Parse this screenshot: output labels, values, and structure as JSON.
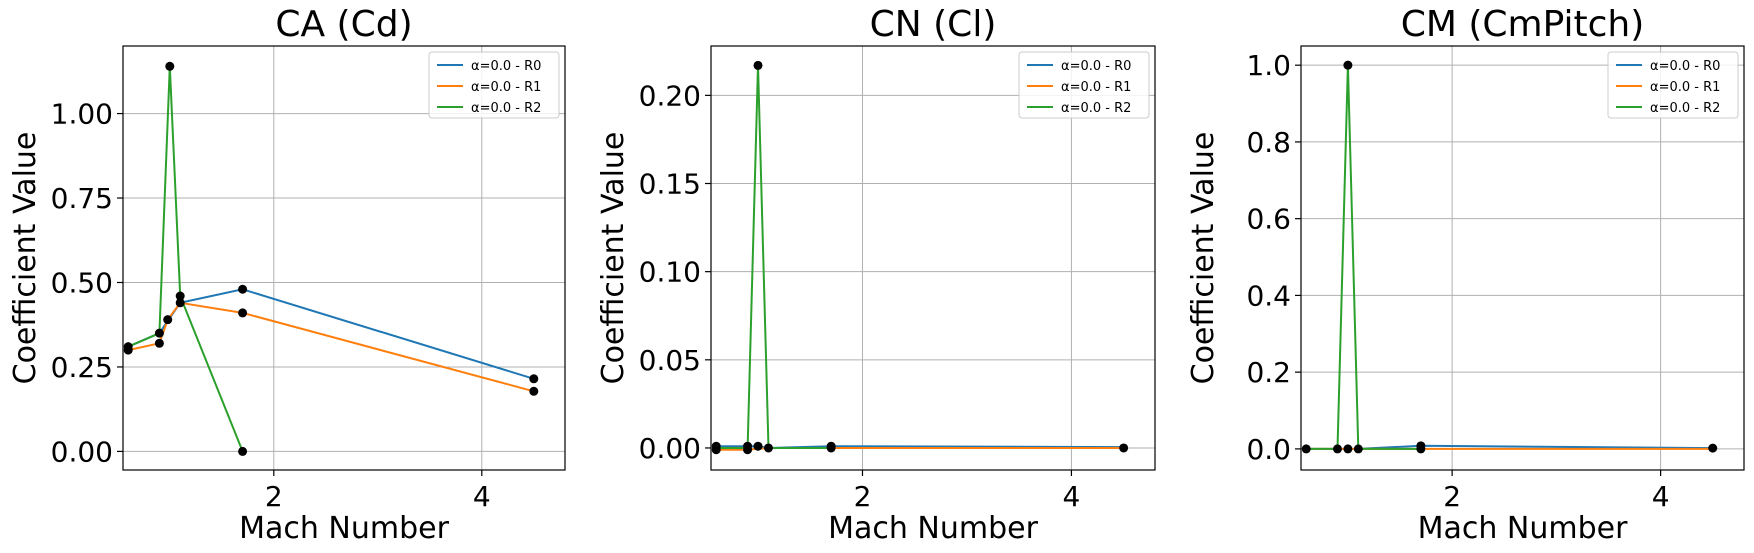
{
  "chart_data": [
    {
      "type": "line",
      "title": "CA (Cd)",
      "xlabel": "Mach Number",
      "ylabel": "Coefficient Value",
      "xlim": [
        0.55,
        4.8
      ],
      "ylim": [
        -0.055,
        1.2
      ],
      "xticks": [
        2,
        4
      ],
      "xtick_labels": [
        "2",
        "4"
      ],
      "yticks": [
        0,
        0.25,
        0.5,
        0.75,
        1.0
      ],
      "ytick_labels": [
        "0.00",
        "0.25",
        "0.50",
        "0.75",
        "1.00"
      ],
      "grid": true,
      "legend_position": "top-right",
      "series": [
        {
          "name": "α=0.0 - R0",
          "color": "#1f77b4",
          "x": [
            0.6,
            0.9,
            1.1,
            1.7,
            4.5
          ],
          "y": [
            0.31,
            0.35,
            0.44,
            0.48,
            0.215
          ]
        },
        {
          "name": "α=0.0 - R1",
          "color": "#ff7f0e",
          "x": [
            0.6,
            0.9,
            0.98,
            1.1,
            1.7,
            4.5
          ],
          "y": [
            0.3,
            0.32,
            0.39,
            0.44,
            0.41,
            0.178
          ]
        },
        {
          "name": "α=0.0 - R2",
          "color": "#2ca02c",
          "x": [
            0.6,
            0.9,
            1.0,
            1.1,
            1.7
          ],
          "y": [
            0.31,
            0.35,
            1.14,
            0.46,
            0.0
          ]
        }
      ],
      "markers": [
        [
          0.6,
          0.31
        ],
        [
          0.6,
          0.3
        ],
        [
          0.9,
          0.35
        ],
        [
          0.9,
          0.32
        ],
        [
          0.98,
          0.39
        ],
        [
          1.0,
          1.14
        ],
        [
          1.1,
          0.46
        ],
        [
          1.1,
          0.44
        ],
        [
          1.7,
          0.48
        ],
        [
          1.7,
          0.41
        ],
        [
          1.7,
          0.0
        ],
        [
          4.5,
          0.215
        ],
        [
          4.5,
          0.178
        ]
      ]
    },
    {
      "type": "line",
      "title": "CN (Cl)",
      "xlabel": "Mach Number",
      "ylabel": "Coefficient Value",
      "xlim": [
        0.55,
        4.8
      ],
      "ylim": [
        -0.0125,
        0.228
      ],
      "xticks": [
        2,
        4
      ],
      "xtick_labels": [
        "2",
        "4"
      ],
      "yticks": [
        0,
        0.05,
        0.1,
        0.15,
        0.2
      ],
      "ytick_labels": [
        "0.00",
        "0.05",
        "0.10",
        "0.15",
        "0.20"
      ],
      "grid": true,
      "legend_position": "top-right",
      "series": [
        {
          "name": "α=0.0 - R0",
          "color": "#1f77b4",
          "x": [
            0.6,
            0.9,
            1.0,
            1.1,
            1.7,
            4.5
          ],
          "y": [
            0.001,
            0.001,
            0.001,
            0.0,
            0.001,
            0.0005
          ]
        },
        {
          "name": "α=0.0 - R1",
          "color": "#ff7f0e",
          "x": [
            0.6,
            0.9,
            1.0,
            1.1,
            1.7,
            4.5
          ],
          "y": [
            -0.001,
            -0.001,
            -0.0005,
            0.0,
            0.0,
            0.0
          ]
        },
        {
          "name": "α=0.0 - R2",
          "color": "#2ca02c",
          "x": [
            0.6,
            0.9,
            1.0,
            1.1,
            1.7
          ],
          "y": [
            0.0,
            0.0,
            0.217,
            0.0,
            0.0
          ]
        }
      ],
      "markers": [
        [
          0.6,
          0.001
        ],
        [
          0.6,
          -0.001
        ],
        [
          0.9,
          0.001
        ],
        [
          0.9,
          -0.001
        ],
        [
          1.0,
          0.217
        ],
        [
          1.0,
          0.001
        ],
        [
          1.1,
          0.0
        ],
        [
          1.7,
          0.001
        ],
        [
          1.7,
          0.0
        ],
        [
          4.5,
          0.0
        ]
      ]
    },
    {
      "type": "line",
      "title": "CM (CmPitch)",
      "xlabel": "Mach Number",
      "ylabel": "Coefficient Value",
      "xlim": [
        0.55,
        4.8
      ],
      "ylim": [
        -0.055,
        1.05
      ],
      "xticks": [
        2,
        4
      ],
      "xtick_labels": [
        "2",
        "4"
      ],
      "yticks": [
        0,
        0.2,
        0.4,
        0.6,
        0.8,
        1.0
      ],
      "ytick_labels": [
        "0.0",
        "0.2",
        "0.4",
        "0.6",
        "0.8",
        "1.0"
      ],
      "grid": true,
      "legend_position": "top-right",
      "series": [
        {
          "name": "α=0.0 - R0",
          "color": "#1f77b4",
          "x": [
            0.6,
            0.9,
            1.0,
            1.1,
            1.7,
            4.5
          ],
          "y": [
            0.0,
            0.0,
            0.0,
            0.0,
            0.008,
            0.002
          ]
        },
        {
          "name": "α=0.0 - R1",
          "color": "#ff7f0e",
          "x": [
            0.6,
            0.9,
            1.0,
            1.1,
            1.7,
            4.5
          ],
          "y": [
            0.0,
            0.0,
            0.0,
            0.0,
            0.0,
            0.0
          ]
        },
        {
          "name": "α=0.0 - R2",
          "color": "#2ca02c",
          "x": [
            0.6,
            0.9,
            1.0,
            1.1,
            1.7
          ],
          "y": [
            0.0,
            0.0,
            1.0,
            0.0,
            0.0
          ]
        }
      ],
      "markers": [
        [
          0.6,
          0.0
        ],
        [
          0.9,
          0.0
        ],
        [
          1.0,
          1.0
        ],
        [
          1.0,
          0.0
        ],
        [
          1.1,
          0.0
        ],
        [
          1.7,
          0.008
        ],
        [
          1.7,
          0.0
        ],
        [
          4.5,
          0.002
        ]
      ]
    }
  ]
}
